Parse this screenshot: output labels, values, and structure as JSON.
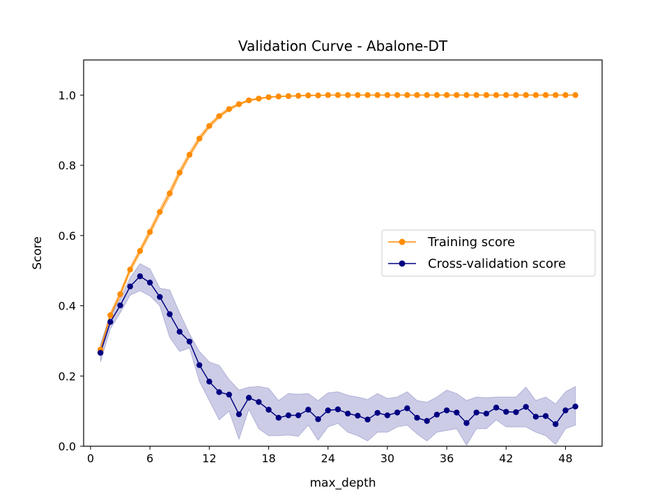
{
  "chart_data": {
    "type": "line",
    "title": "Validation Curve - Abalone-DT",
    "xlabel": "max_depth",
    "ylabel": "Score",
    "xlim": [
      -0.7,
      51.7
    ],
    "ylim": [
      0.0,
      1.1
    ],
    "xticks": [
      0,
      6,
      12,
      18,
      24,
      30,
      36,
      42,
      48
    ],
    "yticks": [
      0.0,
      0.2,
      0.4,
      0.6,
      0.8,
      1.0
    ],
    "xtick_labels": [
      "0",
      "6",
      "12",
      "18",
      "24",
      "30",
      "36",
      "42",
      "48"
    ],
    "ytick_labels": [
      "0.0",
      "0.2",
      "0.4",
      "0.6",
      "0.8",
      "1.0"
    ],
    "grid": false,
    "legend_position": "center-right",
    "x": [
      1,
      2,
      3,
      4,
      5,
      6,
      7,
      8,
      9,
      10,
      11,
      12,
      13,
      14,
      15,
      16,
      17,
      18,
      19,
      20,
      21,
      22,
      23,
      24,
      25,
      26,
      27,
      28,
      29,
      30,
      31,
      32,
      33,
      34,
      35,
      36,
      37,
      38,
      39,
      40,
      41,
      42,
      43,
      44,
      45,
      46,
      47,
      48,
      49
    ],
    "series": [
      {
        "name": "Training score",
        "color": "#ff8c00",
        "values": [
          0.275,
          0.373,
          0.433,
          0.503,
          0.556,
          0.61,
          0.667,
          0.72,
          0.779,
          0.83,
          0.876,
          0.912,
          0.94,
          0.96,
          0.974,
          0.985,
          0.99,
          0.994,
          0.996,
          0.997,
          0.998,
          0.999,
          0.999,
          1.0,
          1.0,
          1.0,
          1.0,
          1.0,
          1.0,
          1.0,
          1.0,
          1.0,
          1.0,
          1.0,
          1.0,
          1.0,
          1.0,
          1.0,
          1.0,
          1.0,
          1.0,
          1.0,
          1.0,
          1.0,
          1.0,
          1.0,
          1.0,
          1.0,
          1.0
        ],
        "lower": [
          0.268,
          0.366,
          0.425,
          0.495,
          0.548,
          0.601,
          0.658,
          0.71,
          0.77,
          0.822,
          0.869,
          0.906,
          0.935,
          0.956,
          0.971,
          0.983,
          0.988,
          0.993,
          0.995,
          0.996,
          0.997,
          0.998,
          0.999,
          1.0,
          1.0,
          1.0,
          1.0,
          1.0,
          1.0,
          1.0,
          1.0,
          1.0,
          1.0,
          1.0,
          1.0,
          1.0,
          1.0,
          1.0,
          1.0,
          1.0,
          1.0,
          1.0,
          1.0,
          1.0,
          1.0,
          1.0,
          1.0,
          1.0,
          1.0
        ],
        "upper": [
          0.282,
          0.38,
          0.441,
          0.511,
          0.564,
          0.619,
          0.676,
          0.73,
          0.788,
          0.838,
          0.883,
          0.918,
          0.945,
          0.964,
          0.977,
          0.987,
          0.992,
          0.995,
          0.997,
          0.998,
          0.999,
          1.0,
          1.0,
          1.0,
          1.0,
          1.0,
          1.0,
          1.0,
          1.0,
          1.0,
          1.0,
          1.0,
          1.0,
          1.0,
          1.0,
          1.0,
          1.0,
          1.0,
          1.0,
          1.0,
          1.0,
          1.0,
          1.0,
          1.0,
          1.0,
          1.0,
          1.0,
          1.0,
          1.0
        ]
      },
      {
        "name": "Cross-validation score",
        "color": "#000080",
        "band_color": "#8080c0",
        "values": [
          0.266,
          0.354,
          0.401,
          0.455,
          0.484,
          0.466,
          0.425,
          0.376,
          0.326,
          0.298,
          0.231,
          0.184,
          0.154,
          0.147,
          0.091,
          0.138,
          0.126,
          0.104,
          0.081,
          0.088,
          0.088,
          0.104,
          0.077,
          0.102,
          0.105,
          0.093,
          0.087,
          0.076,
          0.095,
          0.088,
          0.096,
          0.108,
          0.081,
          0.072,
          0.09,
          0.102,
          0.096,
          0.066,
          0.096,
          0.093,
          0.11,
          0.098,
          0.097,
          0.112,
          0.084,
          0.086,
          0.063,
          0.102,
          0.113
        ],
        "lower": [
          0.24,
          0.334,
          0.38,
          0.43,
          0.443,
          0.428,
          0.4,
          0.31,
          0.27,
          0.28,
          0.185,
          0.13,
          0.075,
          0.1,
          0.02,
          0.105,
          0.05,
          0.03,
          0.03,
          0.032,
          0.028,
          0.06,
          0.017,
          0.055,
          0.065,
          0.04,
          0.03,
          0.015,
          0.04,
          0.04,
          0.055,
          0.06,
          0.035,
          0.015,
          0.04,
          0.045,
          0.05,
          0.003,
          0.05,
          0.05,
          0.075,
          0.055,
          0.055,
          0.055,
          0.04,
          0.03,
          0.005,
          0.05,
          0.06
        ],
        "upper": [
          0.29,
          0.374,
          0.42,
          0.48,
          0.52,
          0.505,
          0.45,
          0.445,
          0.38,
          0.32,
          0.27,
          0.24,
          0.23,
          0.19,
          0.16,
          0.168,
          0.17,
          0.165,
          0.13,
          0.15,
          0.148,
          0.15,
          0.13,
          0.152,
          0.155,
          0.145,
          0.14,
          0.133,
          0.15,
          0.136,
          0.14,
          0.155,
          0.13,
          0.125,
          0.14,
          0.16,
          0.15,
          0.13,
          0.14,
          0.138,
          0.14,
          0.14,
          0.14,
          0.168,
          0.13,
          0.14,
          0.12,
          0.155,
          0.17
        ]
      }
    ]
  }
}
